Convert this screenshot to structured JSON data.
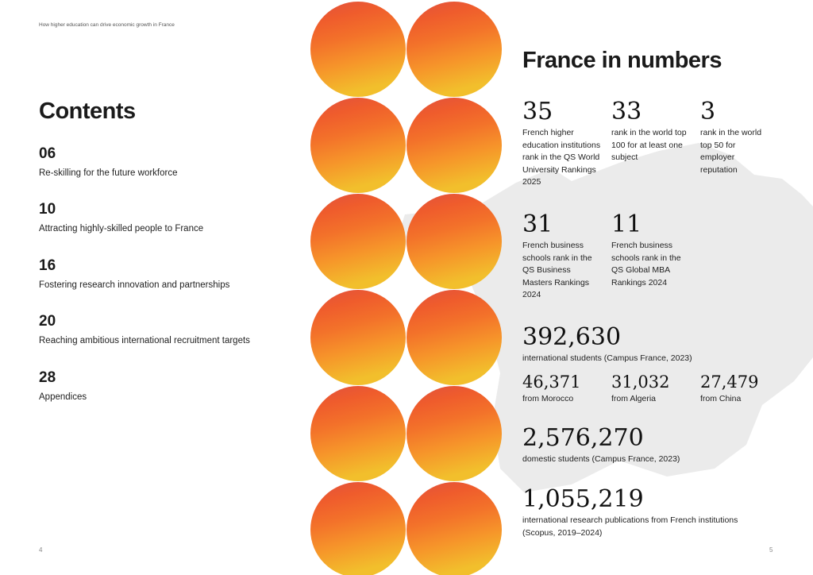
{
  "header": {
    "running_title": "How higher education can drive economic growth in France"
  },
  "left_page": {
    "title": "Contents",
    "items": [
      {
        "num": "06",
        "label": "Re-skilling for the future workforce"
      },
      {
        "num": "10",
        "label": "Attracting highly-skilled people to France"
      },
      {
        "num": "16",
        "label": "Fostering research innovation and partnerships"
      },
      {
        "num": "20",
        "label": "Reaching ambitious international recruitment targets"
      },
      {
        "num": "28",
        "label": "Appendices"
      }
    ],
    "page_number": "4"
  },
  "right_page": {
    "title": "France in numbers",
    "row1": [
      {
        "value": "35",
        "text": "French higher education institutions rank in the QS World University Rankings 2025"
      },
      {
        "value": "33",
        "text": "rank in the world top 100 for at least one subject"
      },
      {
        "value": "3",
        "text": "rank in the world top 50 for employer reputation"
      }
    ],
    "row2": [
      {
        "value": "31",
        "text": "French business schools rank in the QS Business Masters Rankings 2024"
      },
      {
        "value": "11",
        "text": "French business schools rank in the QS Global MBA Rankings 2024"
      }
    ],
    "international": {
      "value": "392,630",
      "text": "international students  (Campus France, 2023)"
    },
    "by_country": [
      {
        "value": "46,371",
        "text": "from Morocco"
      },
      {
        "value": "31,032",
        "text": "from Algeria"
      },
      {
        "value": "27,479",
        "text": "from China"
      }
    ],
    "domestic": {
      "value": "2,576,270",
      "text": "domestic students (Campus France, 2023)"
    },
    "publications": {
      "value": "1,055,219",
      "text": "international research publications from French institutions (Scopus, 2019–2024)"
    },
    "page_number": "5"
  },
  "decoration": {
    "circle_colors_top": [
      "#e55a3f",
      "#f06a2a",
      "#f37a22",
      "#f4922a",
      "#f6a028",
      "#f2b92a"
    ]
  }
}
